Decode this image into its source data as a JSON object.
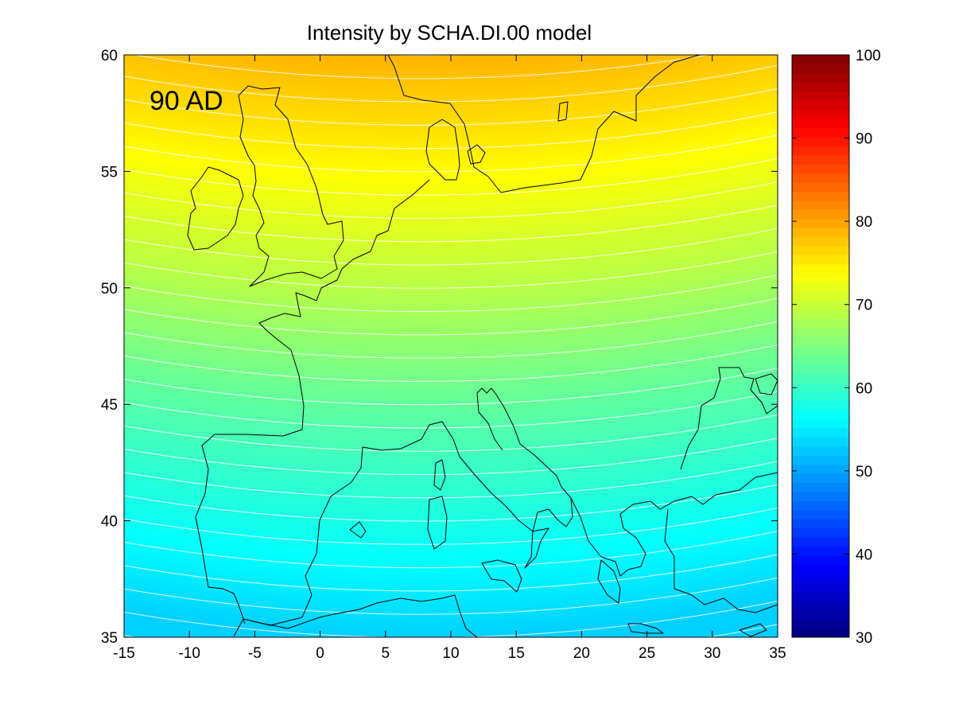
{
  "figure": {
    "title": "Intensity by SCHA.DI.00 model",
    "era_label": "90 AD"
  },
  "chart_data": {
    "type": "heatmap",
    "title": "Intensity by SCHA.DI.00 model",
    "annotation": "90 AD",
    "xlabel": "",
    "ylabel": "",
    "xlim": [
      -15,
      35
    ],
    "ylim": [
      35,
      60
    ],
    "x_ticks": [
      -15,
      -10,
      -5,
      0,
      5,
      10,
      15,
      20,
      25,
      30,
      35
    ],
    "y_ticks": [
      35,
      40,
      45,
      50,
      55,
      60
    ],
    "colorbar": {
      "range": [
        30,
        100
      ],
      "ticks": [
        30,
        40,
        50,
        60,
        70,
        80,
        90,
        100
      ],
      "colormap": "jet"
    },
    "field": {
      "description_units": "intensity",
      "samples": [
        {
          "lat": 60,
          "value": 79
        },
        {
          "lat": 55,
          "value": 74
        },
        {
          "lat": 50,
          "value": 69
        },
        {
          "lat": 45,
          "value": 63
        },
        {
          "lat": 40,
          "value": 58
        },
        {
          "lat": 35,
          "value": 53
        }
      ]
    },
    "contour_lines": true,
    "contour_color": "#ffffff",
    "coastlines": true
  }
}
